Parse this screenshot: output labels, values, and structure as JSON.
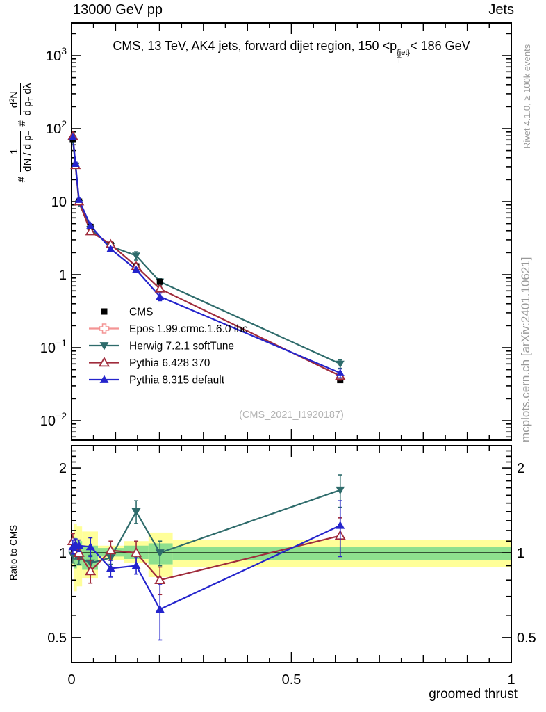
{
  "header": {
    "left_title": "13000 GeV pp",
    "right_title": "Jets"
  },
  "main_panel": {
    "title_parts": {
      "pre": "CMS, 13 TeV, AK4 jets, forward dijet region, 150 <p",
      "sup": "{jet}",
      "sub": "T",
      "post": "< 186 GeV"
    },
    "ylabel_parts": {
      "hash": "#",
      "frac1": {
        "num": "1",
        "den_pre": "dN / d p",
        "den_sub": "T"
      },
      "frac2": {
        "num_pre": "d",
        "num_sup": "2",
        "num_post": "N",
        "den_pre": "d p",
        "den_sub": "T",
        "den_post": " dλ"
      }
    },
    "watermark": "(CMS_2021_I1920187)"
  },
  "ratio_panel": {
    "ylabel": "Ratio to CMS"
  },
  "xlabel": "groomed thrust",
  "side_notes": {
    "rivet": "Rivet 4.1.0, ≥ 100k events",
    "mcplots": "mcplots.cern.ch [arXiv:2401.10621]"
  },
  "colors": {
    "cms": "#000000",
    "epos": "#f49494",
    "herwig": "#2e6b6b",
    "pythia6": "#a02c3c",
    "pythia8": "#2424cc",
    "band_yellow": "#ffff99",
    "band_green": "#8ee08e",
    "note_gray": "#9a9a9a",
    "watermark_gray": "#b3b3b3"
  },
  "chart_data": {
    "type": "line",
    "xlabel": "groomed thrust",
    "xlim": [
      0,
      1
    ],
    "xticks": [
      0,
      0.5,
      1
    ],
    "xtick_labels": [
      "0",
      "0.5",
      "1"
    ],
    "main": {
      "yscale": "log",
      "ylim": [
        0.0054,
        2820
      ],
      "ytick_values": [
        1000,
        100,
        10,
        1,
        0.1,
        0.01
      ],
      "ytick_labels": [
        [
          "10",
          "3"
        ],
        [
          "10",
          "2"
        ],
        [
          "10",
          ""
        ],
        [
          "1",
          ""
        ],
        [
          "10",
          "−1"
        ],
        [
          "10",
          "−2"
        ]
      ]
    },
    "ratio": {
      "yscale": "log",
      "ylim": [
        0.403,
        2.4
      ],
      "ytick_values": [
        2,
        1,
        0.5
      ],
      "ytick_labels": [
        "2",
        "1",
        "0.5"
      ]
    },
    "x": [
      0.003,
      0.009,
      0.017,
      0.043,
      0.089,
      0.147,
      0.201,
      0.611
    ],
    "series": [
      {
        "name": "CMS",
        "marker": "square",
        "color": "#000000",
        "line": false,
        "draw_in_ratio": false,
        "values": [
          72,
          31,
          10,
          4.5,
          2.55,
          1.3,
          0.8,
          0.036
        ],
        "err_frac": [
          0.05,
          0.04,
          0.03,
          0.03,
          0.03,
          0.04,
          0.05,
          0.07
        ],
        "ratio": [
          1,
          1,
          1,
          1,
          1,
          1,
          1,
          1
        ],
        "ratio_err": [
          0,
          0,
          0,
          0,
          0,
          0,
          0,
          0
        ]
      },
      {
        "name": "Herwig 7.2.1 softTune",
        "marker": "tri-down",
        "color": "#2e6b6b",
        "line": true,
        "draw_in_ratio": true,
        "values": [
          70,
          31,
          9.6,
          4.2,
          2.45,
          1.82,
          0.8,
          0.06
        ],
        "err_frac": [
          0.05,
          0.05,
          0.05,
          0.06,
          0.05,
          0.13,
          0.1,
          0.13
        ],
        "ratio": [
          0.98,
          1.0,
          0.96,
          0.92,
          0.96,
          1.4,
          1.0,
          1.67
        ],
        "ratio_err": [
          0.06,
          0.05,
          0.05,
          0.06,
          0.05,
          0.13,
          0.1,
          0.22
        ]
      },
      {
        "name": "Pythia 6.428 370",
        "marker": "tri-up-open",
        "color": "#a02c3c",
        "line": true,
        "draw_in_ratio": true,
        "values": [
          79,
          31.5,
          10.0,
          3.9,
          2.6,
          1.3,
          0.64,
          0.041
        ],
        "err_frac": [
          0.05,
          0.05,
          0.05,
          0.08,
          0.08,
          0.1,
          0.09,
          0.12
        ],
        "ratio": [
          1.1,
          1.02,
          1.0,
          0.86,
          1.02,
          1.0,
          0.8,
          1.15
        ],
        "ratio_err": [
          0.07,
          0.05,
          0.05,
          0.08,
          0.08,
          0.1,
          0.09,
          0.18
        ]
      },
      {
        "name": "Pythia 8.315 default",
        "marker": "tri-up",
        "color": "#2424cc",
        "line": true,
        "draw_in_ratio": true,
        "values": [
          76,
          33,
          10.6,
          4.7,
          2.25,
          1.17,
          0.5,
          0.045
        ],
        "err_frac": [
          0.05,
          0.05,
          0.05,
          0.08,
          0.06,
          0.06,
          0.12,
          0.14
        ],
        "ratio": [
          1.05,
          1.07,
          1.06,
          1.05,
          0.88,
          0.9,
          0.63,
          1.25
        ],
        "ratio_err": [
          0.06,
          0.05,
          0.05,
          0.08,
          0.06,
          0.06,
          0.14,
          0.28
        ]
      }
    ],
    "legend": [
      {
        "label": "CMS",
        "marker": "square",
        "color": "#000000",
        "line": false
      },
      {
        "label": "Epos 1.99.crmc.1.6.0 lhc",
        "marker": "open-cross",
        "color": "#f49494",
        "line": true
      },
      {
        "label": "Herwig 7.2.1 softTune",
        "marker": "tri-down",
        "color": "#2e6b6b",
        "line": true
      },
      {
        "label": "Pythia 6.428 370",
        "marker": "tri-up-open",
        "color": "#a02c3c",
        "line": true
      },
      {
        "label": "Pythia 8.315 default",
        "marker": "tri-up",
        "color": "#2424cc",
        "line": true
      }
    ],
    "bands": {
      "bin_edges": [
        0,
        0.006,
        0.012,
        0.024,
        0.06,
        0.12,
        0.175,
        0.23,
        1.0
      ],
      "yellow": [
        [
          0.9,
          1.12
        ],
        [
          0.73,
          1.27
        ],
        [
          0.76,
          1.24
        ],
        [
          0.81,
          1.19
        ],
        [
          0.94,
          1.06
        ],
        [
          0.92,
          1.1
        ],
        [
          0.82,
          1.18
        ],
        [
          0.89,
          1.11
        ]
      ],
      "green": [
        [
          0.95,
          1.06
        ],
        [
          0.88,
          1.13
        ],
        [
          0.9,
          1.1
        ],
        [
          0.87,
          1.06
        ],
        [
          0.97,
          1.04
        ],
        [
          0.95,
          1.06
        ],
        [
          0.91,
          1.08
        ],
        [
          0.94,
          1.05
        ]
      ],
      "reference_line": 1
    }
  }
}
